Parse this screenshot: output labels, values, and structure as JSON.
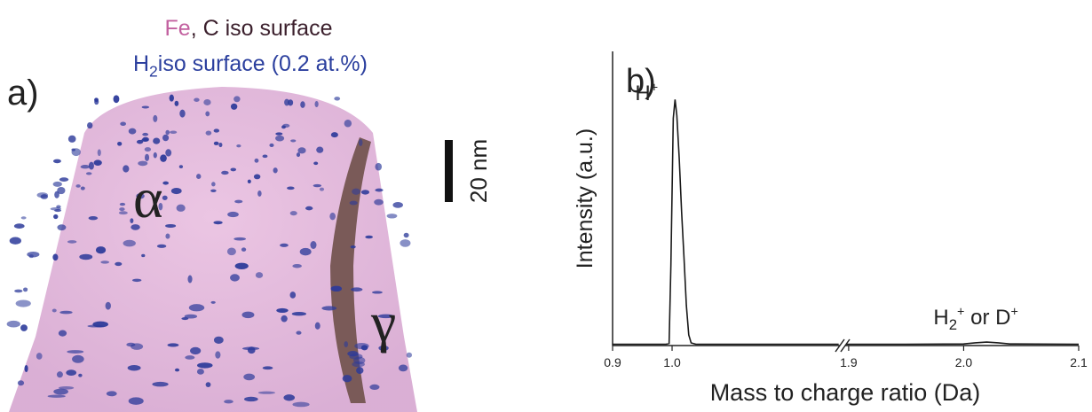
{
  "panel_a": {
    "label": "a)",
    "title_line1": [
      {
        "t": "Fe",
        "color": "#c2609f"
      },
      {
        "t": ", C iso surface",
        "color": "#3b1f2c"
      }
    ],
    "title_line2": [
      {
        "t": "H"
      },
      {
        "sub": "2"
      },
      {
        "t": "iso surface (0.2 at.%)"
      }
    ],
    "title_line2_color": "#2b3f9e",
    "phase_alpha": "α",
    "phase_gamma": "γ",
    "scale_bar": "20 nm"
  },
  "chart_data": {
    "type": "line",
    "panel_label": "b)",
    "x_label": "Mass to charge ratio (Da)",
    "y_label": "Intensity (a.u.)",
    "ylim": [
      0,
      1.1
    ],
    "x_segments": [
      {
        "xlim": [
          0.9,
          1.282
        ],
        "xticks": [
          0.9,
          {
            "value": 1,
            "label": "1.0"
          }
        ]
      },
      {
        "xlim": [
          1.897,
          2.1
        ],
        "xticks": [
          1.9,
          {
            "value": 2,
            "label": "2.0"
          },
          2.1
        ]
      }
    ],
    "series": [
      {
        "color": "#1a1a1a",
        "x": [
          0.9,
          0.95,
          0.99,
          0.995,
          0.998,
          1.002,
          1.005,
          1.008,
          1.012,
          1.016,
          1.02,
          1.024,
          1.028,
          1.032,
          1.04,
          1.1,
          1.2,
          1.28
        ],
        "values": [
          0.005,
          0.005,
          0.005,
          0.008,
          0.3,
          0.85,
          0.92,
          0.86,
          0.7,
          0.5,
          0.33,
          0.15,
          0.04,
          0.01,
          0.005,
          0.005,
          0.005,
          0.005
        ]
      },
      {
        "color": "#1a1a1a",
        "x": [
          1.898,
          1.95,
          2.0,
          2.01,
          2.02,
          2.03,
          2.04,
          2.1
        ],
        "values": [
          0.005,
          0.005,
          0.006,
          0.01,
          0.013,
          0.01,
          0.006,
          0.005
        ]
      }
    ],
    "annotations": [
      {
        "x": 1.005,
        "parts": [
          {
            "t": "H"
          },
          {
            "sup": "+"
          }
        ]
      },
      {
        "x": 2.02,
        "parts": [
          {
            "t": "H"
          },
          {
            "sub": "2"
          },
          {
            "sup": "+"
          },
          {
            "t": " or D"
          },
          {
            "sup": "+"
          }
        ]
      }
    ]
  }
}
